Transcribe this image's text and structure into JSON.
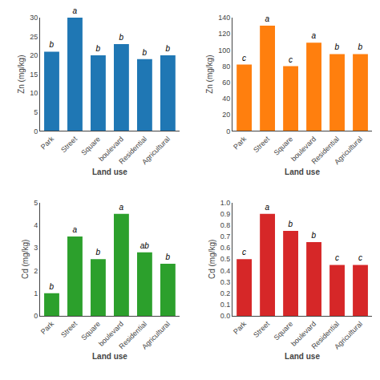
{
  "chart_data": [
    {
      "type": "bar",
      "categories": [
        "Park",
        "Street",
        "Square",
        "boulevard",
        "Residential",
        "Agricultural"
      ],
      "values": [
        21,
        30,
        20,
        23,
        19,
        20
      ],
      "annotations": [
        "b",
        "a",
        "b",
        "b",
        "b",
        "b"
      ],
      "xlabel": "Land use",
      "ylabel": "Zn (mg/kg)",
      "ylim": [
        0,
        30
      ],
      "yticks": [
        0,
        5,
        10,
        15,
        20,
        25,
        30
      ],
      "grid": false
    },
    {
      "type": "bar",
      "categories": [
        "Park",
        "Street",
        "Square",
        "boulevard",
        "Residential",
        "Agricultural"
      ],
      "values": [
        82,
        130,
        80,
        109,
        95,
        95
      ],
      "annotations": [
        "c",
        "a",
        "c",
        "a",
        "b",
        "b"
      ],
      "xlabel": "Land use",
      "ylabel": "Zn (mg/kg)",
      "ylim": [
        0,
        140
      ],
      "yticks": [
        0,
        20,
        40,
        60,
        80,
        100,
        120,
        140
      ],
      "grid": false
    },
    {
      "type": "bar",
      "categories": [
        "Park",
        "Street",
        "Square",
        "boulevard",
        "Residential",
        "Agricultural"
      ],
      "values": [
        1.0,
        3.5,
        2.5,
        4.5,
        2.8,
        2.3
      ],
      "annotations": [
        "b",
        "a",
        "b",
        "a",
        "ab",
        "b"
      ],
      "xlabel": "Land use",
      "ylabel": "Cd (mg/kg)",
      "ylim": [
        0,
        5
      ],
      "yticks": [
        0,
        1,
        2,
        3,
        4,
        5
      ],
      "grid": false
    },
    {
      "type": "bar",
      "categories": [
        "Park",
        "Street",
        "Square",
        "boulevard",
        "Residential",
        "Agricultural"
      ],
      "values": [
        0.5,
        0.9,
        0.75,
        0.65,
        0.45,
        0.45
      ],
      "annotations": [
        "c",
        "a",
        "b",
        "b",
        "c",
        "c"
      ],
      "xlabel": "Land use",
      "ylabel": "Cd (mg/kg)",
      "ylim": [
        0,
        1.0
      ],
      "yticks": [
        {
          "value": 0,
          "label": "0.0"
        },
        0.1,
        0.2,
        0.3,
        0.4,
        0.5,
        0.6,
        0.7,
        0.8,
        0.9,
        {
          "value": 1.0,
          "label": "1.0"
        }
      ],
      "grid": false
    }
  ]
}
